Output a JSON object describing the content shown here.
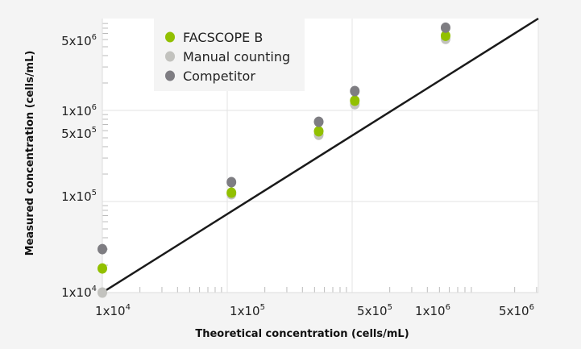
{
  "chart_data": {
    "type": "scatter",
    "title": "",
    "xlabel": "Theoretical concentration (cells/mL)",
    "ylabel": "Measured concentration (cells/mL)",
    "xscale": "log",
    "yscale": "log",
    "xlim": [
      10000,
      30000000
    ],
    "ylim": [
      10000,
      10000000
    ],
    "grid": true,
    "legend_position": "top-left",
    "x_tick_labels": [
      {
        "label": "1x10",
        "exp": "4",
        "value": 10000
      },
      {
        "label": "1x10",
        "exp": "5",
        "value": 100000
      },
      {
        "label": "5x10",
        "exp": "5",
        "value": 500000
      },
      {
        "label": "1x10",
        "exp": "6",
        "value": 1000000
      },
      {
        "label": "5x10",
        "exp": "6",
        "value": 5000000
      }
    ],
    "y_tick_labels": [
      {
        "label": "5x10",
        "exp": "6",
        "value": 5000000
      },
      {
        "label": "1x10",
        "exp": "6",
        "value": 1000000
      },
      {
        "label": "5x10",
        "exp": "5",
        "value": 500000
      },
      {
        "label": "1x10",
        "exp": "5",
        "value": 100000
      },
      {
        "label": "1x10",
        "exp": "4",
        "value": 10000
      }
    ],
    "x": [
      10000,
      108000,
      540000,
      1050000,
      5600000
    ],
    "series": [
      {
        "name": "Manual counting",
        "color": "#c2c2be",
        "values": [
          10000,
          120000,
          540000,
          1170000,
          6100000
        ]
      },
      {
        "name": "FACSCOPE B",
        "color": "#92c000",
        "values": [
          18400,
          125000,
          590000,
          1280000,
          6600000
        ]
      },
      {
        "name": "Competitor",
        "color": "#7e7d82",
        "values": [
          30000,
          163000,
          750000,
          1630000,
          8100000
        ]
      }
    ],
    "reference_line": {
      "from": [
        10000,
        10000
      ],
      "to": [
        30000000,
        10000000
      ],
      "color": "#1a1a1a"
    },
    "legend_order": [
      "FACSCOPE B",
      "Manual counting",
      "Competitor"
    ]
  }
}
